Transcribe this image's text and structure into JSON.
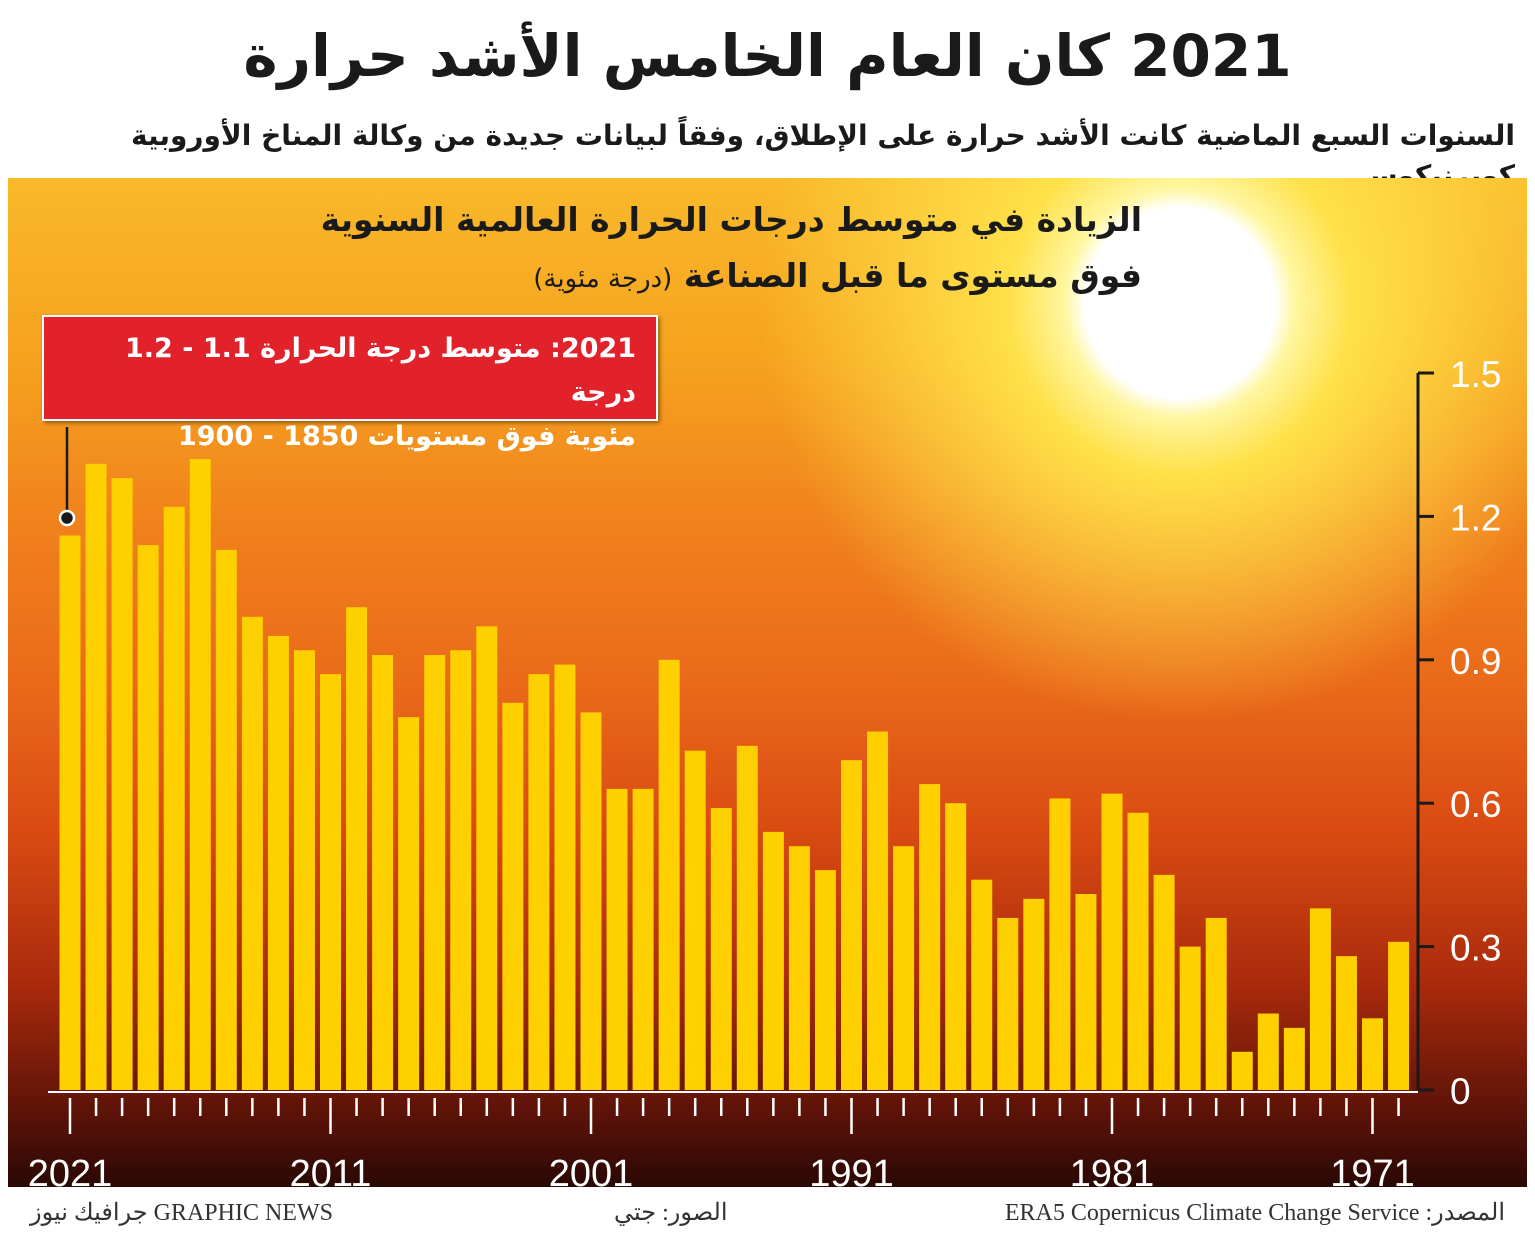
{
  "header": {
    "title": "2021 كان العام الخامس الأشد حرارة",
    "subtitle": "السنوات السبع الماضية كانت الأشد حرارة على الإطلاق، وفقاً لبيانات جديدة من وكالة المناخ الأوروبية كوبرنيكوس"
  },
  "callout": {
    "line1": "2021: متوسط درجة الحرارة 1.1 - 1.2 درجة",
    "line2": "مئوية فوق مستويات 1850 - 1900"
  },
  "footer": {
    "source": "المصدر: ERA5 Copernicus Climate Change Service",
    "photo": "الصور: جتي",
    "credit": "GRAPHIC NEWS جرافيك نيوز"
  },
  "colors": {
    "bar": "#ffd000",
    "callout": "#e2222a",
    "axis": "#1a1a1a",
    "tick_label": "#ffffff"
  },
  "chart_data": {
    "type": "bar",
    "title_line1": "الزيادة في متوسط درجات الحرارة العالمية السنوية",
    "title_line2": "فوق مستوى ما قبل الصناعة",
    "ylabel": "(درجة مئوية)",
    "ylim": [
      0,
      1.5
    ],
    "yticks": [
      "0",
      "0.3",
      "0.6",
      "0.9",
      "1.2",
      "1.5"
    ],
    "y_axis_side": "right",
    "x_tick_labels": [
      "2021",
      "2011",
      "2001",
      "1991",
      "1981",
      "1971"
    ],
    "grid": false,
    "categories": [
      2021,
      2020,
      2019,
      2018,
      2017,
      2016,
      2015,
      2014,
      2013,
      2012,
      2011,
      2010,
      2009,
      2008,
      2007,
      2006,
      2005,
      2004,
      2003,
      2002,
      2001,
      2000,
      1999,
      1998,
      1997,
      1996,
      1995,
      1994,
      1993,
      1992,
      1991,
      1990,
      1989,
      1988,
      1987,
      1986,
      1985,
      1984,
      1983,
      1982,
      1981,
      1980,
      1979,
      1978,
      1977,
      1976,
      1975,
      1974,
      1973,
      1972,
      1971,
      1970
    ],
    "values": [
      1.16,
      1.31,
      1.28,
      1.14,
      1.22,
      1.32,
      1.13,
      0.99,
      0.95,
      0.92,
      0.87,
      1.01,
      0.91,
      0.78,
      0.91,
      0.92,
      0.97,
      0.81,
      0.87,
      0.89,
      0.79,
      0.63,
      0.63,
      0.9,
      0.71,
      0.59,
      0.72,
      0.54,
      0.51,
      0.46,
      0.69,
      0.75,
      0.51,
      0.64,
      0.6,
      0.44,
      0.36,
      0.4,
      0.61,
      0.41,
      0.62,
      0.58,
      0.45,
      0.3,
      0.36,
      0.08,
      0.16,
      0.13,
      0.38,
      0.28,
      0.15,
      0.31
    ]
  }
}
